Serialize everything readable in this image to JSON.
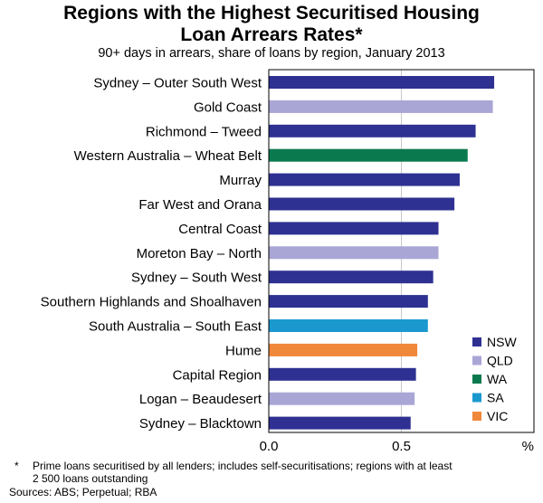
{
  "chart_data": {
    "type": "bar",
    "orientation": "horizontal",
    "title_lines": [
      "Regions with the Highest Securitised Housing",
      "Loan Arrears Rates*"
    ],
    "subtitle": "90+ days in arrears, share of loans by region, January 2013",
    "unit_label": "%",
    "xlim": [
      0,
      1.0
    ],
    "x_ticks": [
      "0.0",
      "0.5",
      "%"
    ],
    "grid": true,
    "legend_placement": "bottom-right",
    "states": [
      {
        "name": "NSW",
        "color": "#2e3192"
      },
      {
        "name": "QLD",
        "color": "#a9a6d6"
      },
      {
        "name": "WA",
        "color": "#0a7a4e"
      },
      {
        "name": "SA",
        "color": "#1b99cf"
      },
      {
        "name": "VIC",
        "color": "#f0883a"
      }
    ],
    "bars": [
      {
        "region": "Sydney – Outer South West",
        "state": "NSW",
        "value": 0.85
      },
      {
        "region": "Gold Coast",
        "state": "QLD",
        "value": 0.845
      },
      {
        "region": "Richmond – Tweed",
        "state": "NSW",
        "value": 0.78
      },
      {
        "region": "Western Australia – Wheat Belt",
        "state": "WA",
        "value": 0.75
      },
      {
        "region": "Murray",
        "state": "NSW",
        "value": 0.72
      },
      {
        "region": "Far West and Orana",
        "state": "NSW",
        "value": 0.7
      },
      {
        "region": "Central Coast",
        "state": "NSW",
        "value": 0.64
      },
      {
        "region": "Moreton Bay – North",
        "state": "QLD",
        "value": 0.64
      },
      {
        "region": "Sydney – South West",
        "state": "NSW",
        "value": 0.62
      },
      {
        "region": "Southern Highlands and Shoalhaven",
        "state": "NSW",
        "value": 0.6
      },
      {
        "region": "South Australia – South East",
        "state": "SA",
        "value": 0.6
      },
      {
        "region": "Hume",
        "state": "VIC",
        "value": 0.56
      },
      {
        "region": "Capital Region",
        "state": "NSW",
        "value": 0.555
      },
      {
        "region": "Logan – Beaudesert",
        "state": "QLD",
        "value": 0.55
      },
      {
        "region": "Sydney – Blacktown",
        "state": "NSW",
        "value": 0.535
      }
    ]
  },
  "footnote": {
    "marker": "*",
    "lines": [
      "Prime loans securitised by all lenders; includes self-securitisations; regions with at least",
      "2 500 loans outstanding"
    ],
    "sources": "Sources: ABS; Perpetual; RBA"
  }
}
